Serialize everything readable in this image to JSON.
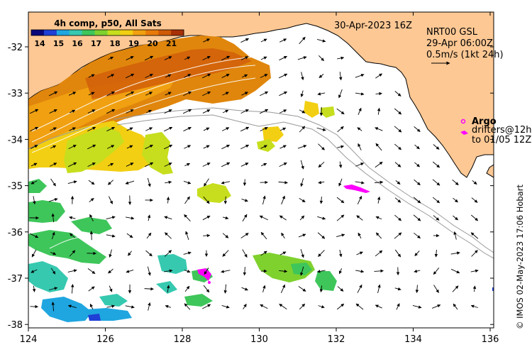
{
  "title": {
    "timestamp": "30-Apr-2023 16Z",
    "composite": "4h comp, p50, All Sats"
  },
  "current_info": {
    "product": "NRT00 GSL",
    "valid": "29-Apr 06:00Z",
    "speed_ref": "0.5m/s (1kt 24h)"
  },
  "legend": {
    "argo": "Argo",
    "drifters_line1": "drifters@12h",
    "drifters_line2": "to 01/05 12Z"
  },
  "colorbar": {
    "ticks": [
      "14",
      "15",
      "16",
      "17",
      "18",
      "19",
      "20",
      "21"
    ],
    "colors": [
      "#08087a",
      "#1f3fd6",
      "#1fa6e0",
      "#36c9b0",
      "#3ec65a",
      "#7fd12e",
      "#c6de1d",
      "#f2cf12",
      "#f0a010",
      "#e87a0a",
      "#cf5a08",
      "#a83006"
    ]
  },
  "credit": "© IMOS 02-May-2023 17:06 Hobart",
  "axes": {
    "x_ticks": [
      "124",
      "126",
      "128",
      "130",
      "132",
      "134",
      "136"
    ],
    "y_ticks": [
      "-32",
      "-33",
      "-34",
      "-35",
      "-36",
      "-37",
      "-38"
    ]
  },
  "colors": {
    "land": "#fdc894",
    "sea": "#ffffff",
    "arrow": "#000000",
    "argo": "#ff00ff",
    "bathymetry": "#999999"
  }
}
